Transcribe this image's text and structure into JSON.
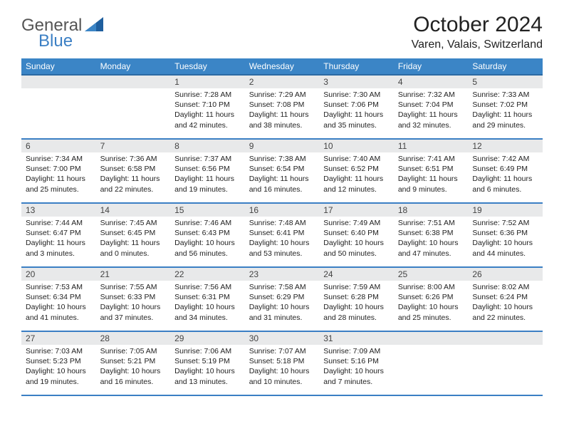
{
  "brand": {
    "part1": "General",
    "part2": "Blue"
  },
  "title": "October 2024",
  "location": "Varen, Valais, Switzerland",
  "colors": {
    "header_bg": "#3b85c6",
    "header_text": "#ffffff",
    "row_border": "#3b7fc4",
    "daynum_bg": "#e8e9ea",
    "brand_gray": "#555555",
    "brand_blue": "#3b7fc4"
  },
  "day_headers": [
    "Sunday",
    "Monday",
    "Tuesday",
    "Wednesday",
    "Thursday",
    "Friday",
    "Saturday"
  ],
  "weeks": [
    [
      {
        "n": "",
        "sunrise": "",
        "sunset": "",
        "dlh": "",
        "dlm": ""
      },
      {
        "n": "",
        "sunrise": "",
        "sunset": "",
        "dlh": "",
        "dlm": ""
      },
      {
        "n": "1",
        "sunrise": "7:28 AM",
        "sunset": "7:10 PM",
        "dlh": "11",
        "dlm": "42"
      },
      {
        "n": "2",
        "sunrise": "7:29 AM",
        "sunset": "7:08 PM",
        "dlh": "11",
        "dlm": "38"
      },
      {
        "n": "3",
        "sunrise": "7:30 AM",
        "sunset": "7:06 PM",
        "dlh": "11",
        "dlm": "35"
      },
      {
        "n": "4",
        "sunrise": "7:32 AM",
        "sunset": "7:04 PM",
        "dlh": "11",
        "dlm": "32"
      },
      {
        "n": "5",
        "sunrise": "7:33 AM",
        "sunset": "7:02 PM",
        "dlh": "11",
        "dlm": "29"
      }
    ],
    [
      {
        "n": "6",
        "sunrise": "7:34 AM",
        "sunset": "7:00 PM",
        "dlh": "11",
        "dlm": "25"
      },
      {
        "n": "7",
        "sunrise": "7:36 AM",
        "sunset": "6:58 PM",
        "dlh": "11",
        "dlm": "22"
      },
      {
        "n": "8",
        "sunrise": "7:37 AM",
        "sunset": "6:56 PM",
        "dlh": "11",
        "dlm": "19"
      },
      {
        "n": "9",
        "sunrise": "7:38 AM",
        "sunset": "6:54 PM",
        "dlh": "11",
        "dlm": "16"
      },
      {
        "n": "10",
        "sunrise": "7:40 AM",
        "sunset": "6:52 PM",
        "dlh": "11",
        "dlm": "12"
      },
      {
        "n": "11",
        "sunrise": "7:41 AM",
        "sunset": "6:51 PM",
        "dlh": "11",
        "dlm": "9"
      },
      {
        "n": "12",
        "sunrise": "7:42 AM",
        "sunset": "6:49 PM",
        "dlh": "11",
        "dlm": "6"
      }
    ],
    [
      {
        "n": "13",
        "sunrise": "7:44 AM",
        "sunset": "6:47 PM",
        "dlh": "11",
        "dlm": "3"
      },
      {
        "n": "14",
        "sunrise": "7:45 AM",
        "sunset": "6:45 PM",
        "dlh": "11",
        "dlm": "0"
      },
      {
        "n": "15",
        "sunrise": "7:46 AM",
        "sunset": "6:43 PM",
        "dlh": "10",
        "dlm": "56"
      },
      {
        "n": "16",
        "sunrise": "7:48 AM",
        "sunset": "6:41 PM",
        "dlh": "10",
        "dlm": "53"
      },
      {
        "n": "17",
        "sunrise": "7:49 AM",
        "sunset": "6:40 PM",
        "dlh": "10",
        "dlm": "50"
      },
      {
        "n": "18",
        "sunrise": "7:51 AM",
        "sunset": "6:38 PM",
        "dlh": "10",
        "dlm": "47"
      },
      {
        "n": "19",
        "sunrise": "7:52 AM",
        "sunset": "6:36 PM",
        "dlh": "10",
        "dlm": "44"
      }
    ],
    [
      {
        "n": "20",
        "sunrise": "7:53 AM",
        "sunset": "6:34 PM",
        "dlh": "10",
        "dlm": "41"
      },
      {
        "n": "21",
        "sunrise": "7:55 AM",
        "sunset": "6:33 PM",
        "dlh": "10",
        "dlm": "37"
      },
      {
        "n": "22",
        "sunrise": "7:56 AM",
        "sunset": "6:31 PM",
        "dlh": "10",
        "dlm": "34"
      },
      {
        "n": "23",
        "sunrise": "7:58 AM",
        "sunset": "6:29 PM",
        "dlh": "10",
        "dlm": "31"
      },
      {
        "n": "24",
        "sunrise": "7:59 AM",
        "sunset": "6:28 PM",
        "dlh": "10",
        "dlm": "28"
      },
      {
        "n": "25",
        "sunrise": "8:00 AM",
        "sunset": "6:26 PM",
        "dlh": "10",
        "dlm": "25"
      },
      {
        "n": "26",
        "sunrise": "8:02 AM",
        "sunset": "6:24 PM",
        "dlh": "10",
        "dlm": "22"
      }
    ],
    [
      {
        "n": "27",
        "sunrise": "7:03 AM",
        "sunset": "5:23 PM",
        "dlh": "10",
        "dlm": "19"
      },
      {
        "n": "28",
        "sunrise": "7:05 AM",
        "sunset": "5:21 PM",
        "dlh": "10",
        "dlm": "16"
      },
      {
        "n": "29",
        "sunrise": "7:06 AM",
        "sunset": "5:19 PM",
        "dlh": "10",
        "dlm": "13"
      },
      {
        "n": "30",
        "sunrise": "7:07 AM",
        "sunset": "5:18 PM",
        "dlh": "10",
        "dlm": "10"
      },
      {
        "n": "31",
        "sunrise": "7:09 AM",
        "sunset": "5:16 PM",
        "dlh": "10",
        "dlm": "7"
      },
      {
        "n": "",
        "sunrise": "",
        "sunset": "",
        "dlh": "",
        "dlm": ""
      },
      {
        "n": "",
        "sunrise": "",
        "sunset": "",
        "dlh": "",
        "dlm": ""
      }
    ]
  ]
}
